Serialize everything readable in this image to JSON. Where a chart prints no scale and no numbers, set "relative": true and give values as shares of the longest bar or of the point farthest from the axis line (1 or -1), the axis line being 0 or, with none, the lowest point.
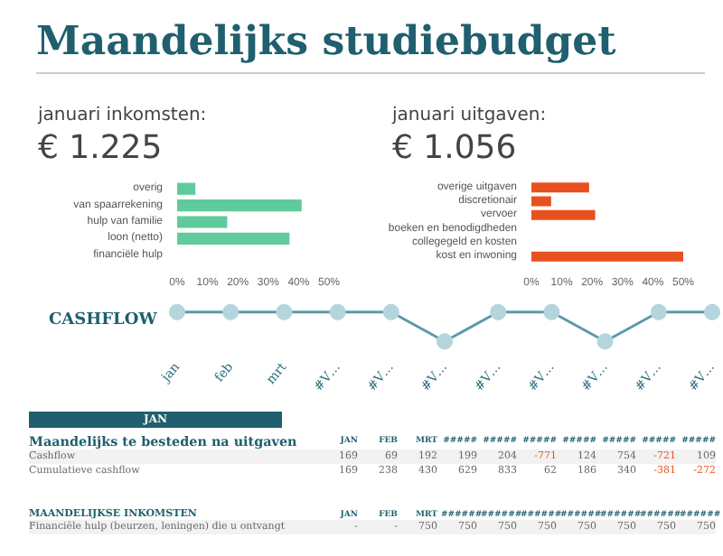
{
  "chart_data": [
    {
      "type": "other",
      "title": "Maandelijks studiebudget"
    },
    {
      "type": "bar",
      "orientation": "horizontal",
      "title": "januari inkomsten:",
      "subtitle": "€ 1.225",
      "categories": [
        "overig",
        "van spaarrekening",
        "hulp van familie",
        "loon (netto)",
        "financiële hulp"
      ],
      "values": [
        6,
        41,
        16.5,
        37,
        0
      ],
      "color": "#5fcb9c",
      "xlim": [
        0,
        50
      ],
      "xticks": [
        {
          "value": 0,
          "label": "0%"
        },
        {
          "value": 10,
          "label": "10%"
        },
        {
          "value": 20,
          "label": "20%"
        },
        {
          "value": 30,
          "label": "30%"
        },
        {
          "value": 40,
          "label": "40%"
        },
        {
          "value": 50,
          "label": "50%"
        }
      ]
    },
    {
      "type": "bar",
      "orientation": "horizontal",
      "title": "januari uitgaven:",
      "subtitle": "€ 1.056",
      "categories": [
        "overige uitgaven",
        "discretionair",
        "vervoer",
        "boeken en benodigdheden",
        "collegegeld en kosten",
        "kost en inwoning"
      ],
      "values": [
        19,
        6.5,
        21,
        0,
        0,
        50
      ],
      "color": "#e8511f",
      "xlim": [
        0,
        50
      ],
      "xticks": [
        {
          "value": 0,
          "label": "0%"
        },
        {
          "value": 10,
          "label": "10%"
        },
        {
          "value": 20,
          "label": "20%"
        },
        {
          "value": 30,
          "label": "30%"
        },
        {
          "value": 40,
          "label": "40%"
        },
        {
          "value": 50,
          "label": "50%"
        }
      ]
    },
    {
      "type": "line",
      "title": "CASHFLOW",
      "relative": true,
      "marker": "circle",
      "categories": [
        "jan",
        "feb",
        "mrt",
        "#V…",
        "#V…",
        "#V…",
        "#V…",
        "#V…",
        "#V…",
        "#V…",
        "#V…"
      ],
      "values": [
        1,
        1,
        1,
        1,
        1,
        0,
        1,
        1,
        0,
        1,
        1
      ],
      "color": "#5b9aa9"
    },
    {
      "type": "other",
      "annotations": [
        "JAN"
      ],
      "title": "Maandelijks te besteden na uitgaven",
      "categories": [
        "JAN",
        "FEB",
        "MRT",
        "#####",
        "#####",
        "#####",
        "#####",
        "#####",
        "#####",
        "#####"
      ],
      "cells": [
        [
          "Cashflow",
          "169",
          "69",
          "192",
          "199",
          "204",
          "-771",
          "124",
          "754",
          "-721",
          "109"
        ],
        [
          "Cumulatieve cashflow",
          "169",
          "238",
          "430",
          "629",
          "833",
          "62",
          "186",
          "340",
          "-381",
          "-272"
        ]
      ]
    },
    {
      "type": "other",
      "title": "MAANDELIJKSE INKOMSTEN",
      "categories": [
        "JAN",
        "FEB",
        "MRT",
        "######",
        "######",
        "######",
        "######",
        "######",
        "######",
        "######"
      ],
      "cells": [
        [
          "Financiële hulp (beurzen, leningen) die u ontvangt",
          "-",
          "-",
          "750",
          "750",
          "750",
          "750",
          "750",
          "750",
          "750",
          "750"
        ]
      ]
    }
  ]
}
